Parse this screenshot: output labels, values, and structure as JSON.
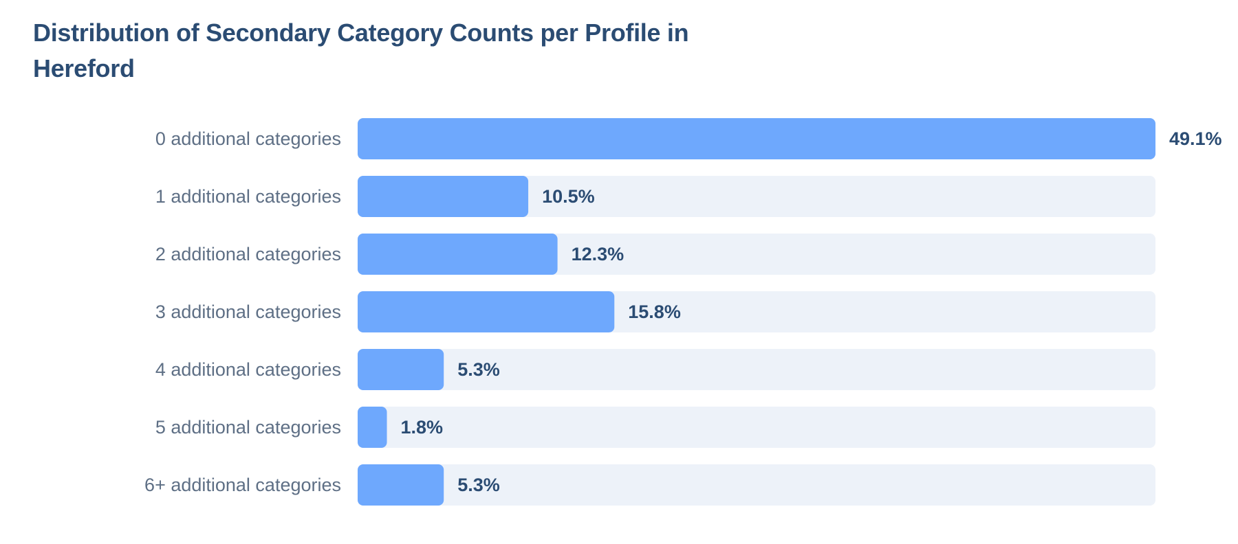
{
  "chart_data": {
    "type": "bar",
    "orientation": "horizontal",
    "title": "Distribution of Secondary Category Counts per Profile in Hereford",
    "categories": [
      "0 additional categories",
      "1 additional categories",
      "2 additional categories",
      "3 additional categories",
      "4 additional categories",
      "5 additional categories",
      "6+ additional categories"
    ],
    "values": [
      49.1,
      10.5,
      12.3,
      15.8,
      5.3,
      1.8,
      5.3
    ],
    "value_labels": [
      "49.1%",
      "10.5%",
      "12.3%",
      "15.8%",
      "5.3%",
      "1.8%",
      "5.3%"
    ],
    "xlim": [
      0,
      49.1
    ],
    "grid": false,
    "legend": "none",
    "colors": {
      "bar": "#6ea8fd",
      "track": "#edf2f9",
      "title": "#2b4c73",
      "category_label": "#5e6f85",
      "value_label": "#2b4c73"
    }
  }
}
